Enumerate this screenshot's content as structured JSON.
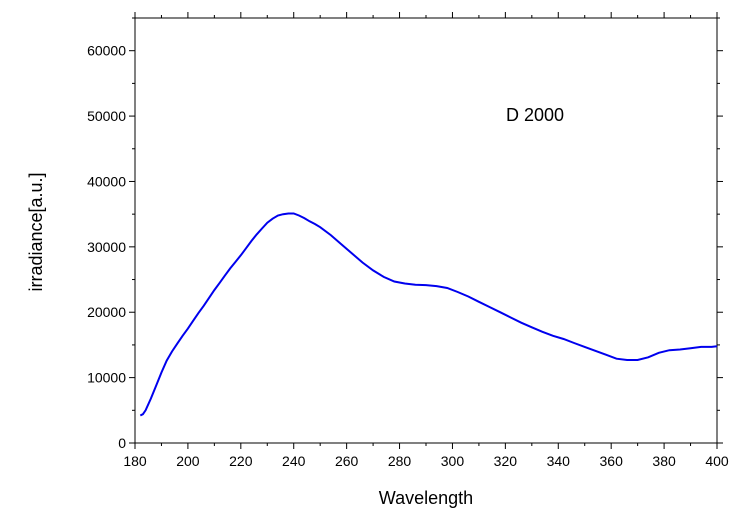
{
  "chart_data": {
    "type": "line",
    "title": "",
    "annotation": "D 2000",
    "xlabel": "Wavelength",
    "ylabel": "irradiance[a.u.]",
    "xlim": [
      180,
      400
    ],
    "ylim": [
      0,
      65000
    ],
    "xticks": [
      180,
      200,
      220,
      240,
      260,
      280,
      300,
      320,
      340,
      360,
      380,
      400
    ],
    "yticks": [
      0,
      10000,
      20000,
      30000,
      40000,
      50000,
      60000
    ],
    "grid": false,
    "line_color": "#0000ee",
    "series": [
      {
        "x": [
          182,
          183,
          184,
          186,
          188,
          190,
          192,
          194,
          196,
          198,
          200,
          202,
          204,
          206,
          208,
          210,
          212,
          214,
          216,
          218,
          220,
          222,
          224,
          226,
          228,
          230,
          232,
          234,
          236,
          238,
          240,
          242,
          244,
          246,
          248,
          250,
          254,
          258,
          262,
          266,
          270,
          274,
          278,
          282,
          286,
          290,
          294,
          298,
          302,
          306,
          310,
          314,
          318,
          322,
          326,
          330,
          334,
          338,
          342,
          346,
          350,
          354,
          358,
          362,
          366,
          370,
          374,
          378,
          382,
          386,
          390,
          394,
          398,
          400
        ],
        "y": [
          4200,
          4400,
          5000,
          6800,
          8800,
          10800,
          12600,
          14000,
          15200,
          16400,
          17500,
          18700,
          19900,
          21000,
          22200,
          23400,
          24500,
          25600,
          26700,
          27700,
          28700,
          29800,
          30900,
          31900,
          32800,
          33700,
          34300,
          34800,
          35000,
          35100,
          35100,
          34800,
          34400,
          33900,
          33500,
          33000,
          31800,
          30400,
          29000,
          27600,
          26400,
          25400,
          24700,
          24400,
          24200,
          24150,
          24000,
          23700,
          23100,
          22400,
          21600,
          20800,
          20000,
          19200,
          18400,
          17700,
          17000,
          16400,
          15900,
          15300,
          14700,
          14100,
          13500,
          12900,
          12700,
          12700,
          13100,
          13800,
          14200,
          14300,
          14500,
          14700,
          14700,
          14800
        ]
      }
    ]
  }
}
